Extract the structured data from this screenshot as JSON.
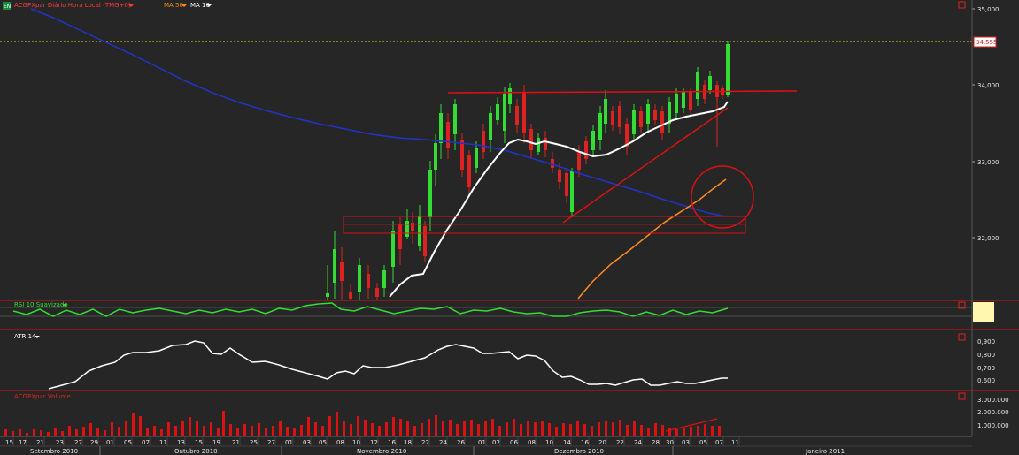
{
  "main_panel": {
    "app_icon_label": "EN",
    "instrument_label": "ACGPXpar Diário Hora Local (TMG+0)",
    "instrument_color": "#ff3b3b",
    "ma50_label": "MA 50",
    "ma50_color": "#ff8c1a",
    "ma10_label": "MA 10",
    "ma10_color": "#ffffff",
    "blue_ma_color": "#2233cc",
    "price_ticks": [
      "35,000",
      "34,000",
      "33,000",
      "32,000"
    ],
    "last_price": "34,555"
  },
  "rsi_panel": {
    "label": "RSI 10 Suavizado",
    "color": "#33dd33"
  },
  "atr_panel": {
    "label": "ATR 14",
    "ticks": [
      "0,900",
      "0,800",
      "0,700",
      "0,600"
    ]
  },
  "volume_panel": {
    "label": "ACGPXpar Volume",
    "ticks": [
      "3.000.000",
      "2.000.000",
      "1.000.000"
    ],
    "bar_color": "#dd1111"
  },
  "time_axis": {
    "day_ticks": [
      "15",
      "17",
      "21",
      "23",
      "27",
      "29",
      "01",
      "05",
      "07",
      "11",
      "13",
      "15",
      "19",
      "21",
      "25",
      "27",
      "01",
      "03",
      "05",
      "08",
      "10",
      "12",
      "16",
      "18",
      "22",
      "24",
      "26",
      "01",
      "02",
      "06",
      "08",
      "10",
      "14",
      "16",
      "20",
      "22",
      "24",
      "28",
      "30",
      "03",
      "05",
      "07",
      "11"
    ],
    "month_labels": [
      "Setembro 2010",
      "Outubro 2010",
      "Novembro 2010",
      "Dezembro 2010",
      "Janeiro 2011"
    ]
  },
  "colors": {
    "bull": "#33dd33",
    "bear": "#dd2222",
    "annotation": "#dd1111",
    "background": "#262626"
  }
}
